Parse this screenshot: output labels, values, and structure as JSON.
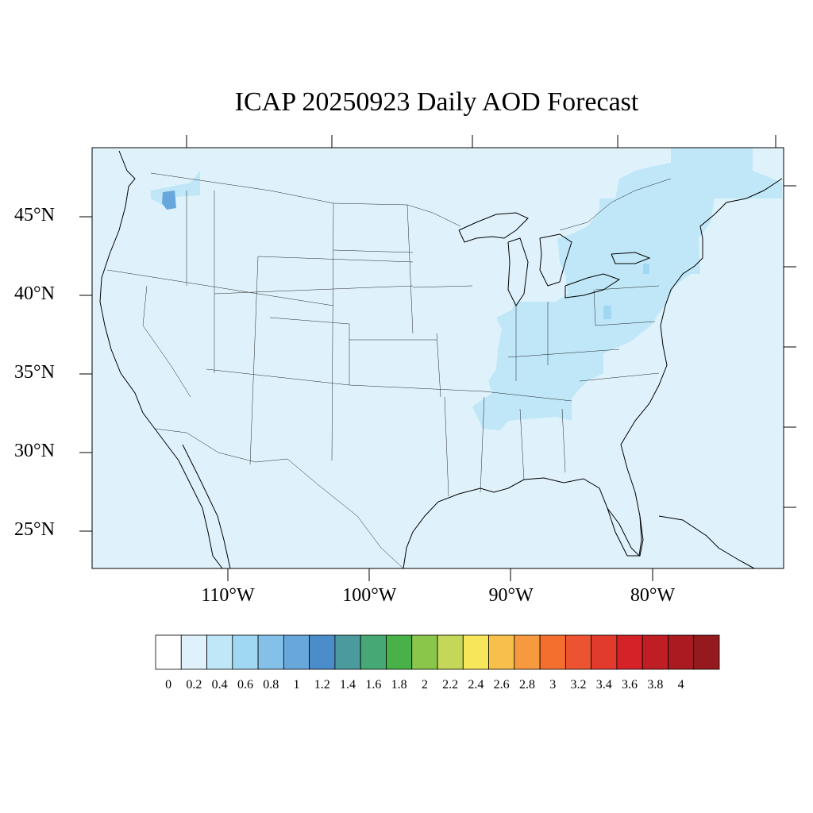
{
  "title": "ICAP 20250923 Daily AOD Forecast",
  "lat_ticks": [
    {
      "value": 45,
      "label": "45°N"
    },
    {
      "value": 40,
      "label": "40°N"
    },
    {
      "value": 35,
      "label": "35°N"
    },
    {
      "value": 30,
      "label": "30°N"
    },
    {
      "value": 25,
      "label": "25°N"
    }
  ],
  "lon_ticks": [
    {
      "value": -110,
      "label": "110°W"
    },
    {
      "value": -100,
      "label": "100°W"
    },
    {
      "value": -90,
      "label": "90°W"
    },
    {
      "value": -80,
      "label": "80°W"
    }
  ],
  "colorbar": {
    "labels": [
      "0",
      "0.2",
      "0.4",
      "0.6",
      "0.8",
      "1",
      "1.2",
      "1.4",
      "1.6",
      "1.8",
      "2",
      "2.2",
      "2.4",
      "2.6",
      "2.8",
      "3",
      "3.2",
      "3.4",
      "3.6",
      "3.8",
      "4"
    ],
    "colors": [
      "#ffffff",
      "#dff2fb",
      "#bfe7f8",
      "#a0d8f3",
      "#84c0e7",
      "#67a7dc",
      "#4b8ccb",
      "#4a9a9e",
      "#46a874",
      "#48b148",
      "#89c64a",
      "#c5d758",
      "#f7e65a",
      "#f8c04a",
      "#f7993e",
      "#f46f2e",
      "#ec5330",
      "#e23b2d",
      "#d52229",
      "#bf1e25",
      "#aa1a20",
      "#951a1e"
    ]
  },
  "map": {
    "background_color": "#dff2fb",
    "elevated_color": "#bfe7f8",
    "peak_color": "#67a7dc",
    "line_color": "#000000"
  }
}
